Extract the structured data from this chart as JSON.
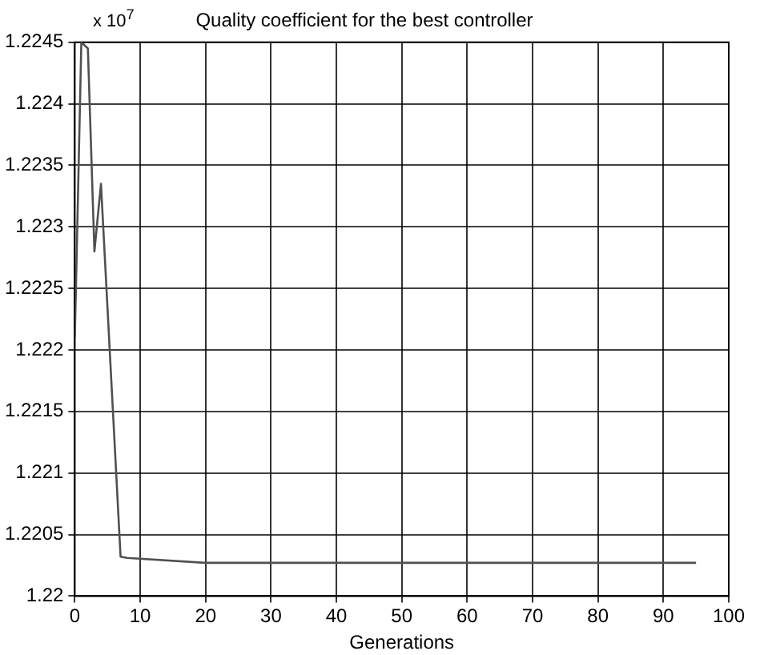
{
  "chart_data": {
    "type": "line",
    "title": "Quality coefficient for the best controller",
    "xlabel": "Generations",
    "annotations": [
      "x 10$^{7}$"
    ],
    "x": [
      0,
      0.3,
      1,
      2,
      3,
      4,
      7,
      8,
      20,
      95
    ],
    "series": [
      {
        "color": "#505050",
        "values": [
          1.2221,
          1.2228,
          1.2245,
          1.22445,
          1.2228,
          1.22335,
          1.22032,
          1.22031,
          1.22027,
          1.22027
        ]
      }
    ],
    "xlim": [
      0,
      100
    ],
    "xticks": [
      0,
      10,
      20,
      30,
      40,
      50,
      60,
      70,
      80,
      90,
      100
    ],
    "ylim": [
      1.22,
      1.2245
    ],
    "yticks": [
      1.22,
      1.2205,
      1.221,
      1.2215,
      1.222,
      1.2225,
      1.223,
      1.2235,
      1.224,
      1.2245
    ],
    "grid": true,
    "legend": false,
    "marker": "none",
    "line_style": "solid"
  }
}
